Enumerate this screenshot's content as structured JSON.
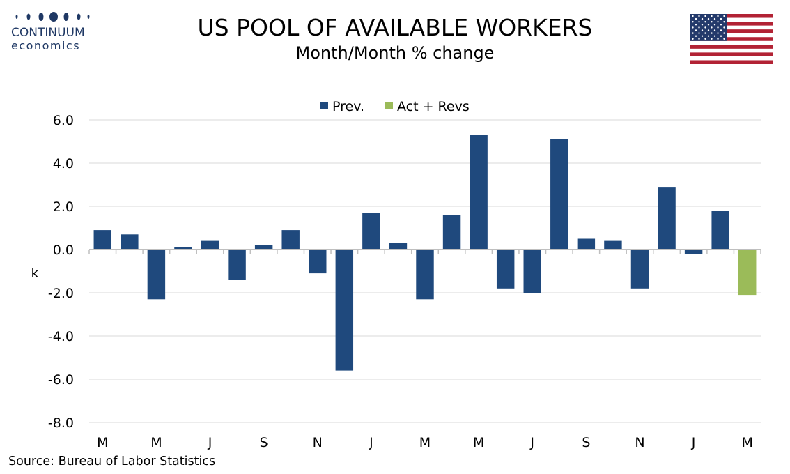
{
  "header": {
    "title": "US POOL OF AVAILABLE WORKERS",
    "subtitle": "Month/Month % change"
  },
  "logo": {
    "name": "CONTINUUM",
    "sub": "economics",
    "color": "#1f3864"
  },
  "flag": {
    "icon": "us-flag-icon"
  },
  "source": "Source: Bureau of Labor Statistics",
  "chart_data": {
    "type": "bar",
    "ylabel": "k",
    "ylim": [
      -8.0,
      6.0
    ],
    "yticks": [
      "6.0",
      "4.0",
      "2.0",
      "0.0",
      "-2.0",
      "-4.0",
      "-6.0",
      "-8.0"
    ],
    "ytick_values": [
      6,
      4,
      2,
      0,
      -2,
      -4,
      -6,
      -8
    ],
    "grid": true,
    "legend_position": "top",
    "x_tick_labels": [
      "M",
      "M",
      "J",
      "S",
      "N",
      "J",
      "M",
      "M",
      "J",
      "S",
      "N",
      "J",
      "M"
    ],
    "series": [
      {
        "name": "Prev.",
        "color": "#1f497d",
        "values": [
          0.9,
          0.7,
          -2.3,
          0.1,
          0.4,
          -1.4,
          0.2,
          0.9,
          -1.1,
          -5.6,
          1.7,
          0.3,
          -2.3,
          1.6,
          5.3,
          -1.8,
          -2.0,
          5.1,
          0.5,
          0.4,
          -1.8,
          2.9,
          -0.2,
          1.8,
          null
        ]
      },
      {
        "name": "Act + Revs",
        "color": "#9bbb59",
        "values": [
          null,
          null,
          null,
          null,
          null,
          null,
          null,
          null,
          null,
          null,
          null,
          null,
          null,
          null,
          null,
          null,
          null,
          null,
          null,
          null,
          null,
          null,
          null,
          null,
          -2.1
        ]
      }
    ]
  }
}
